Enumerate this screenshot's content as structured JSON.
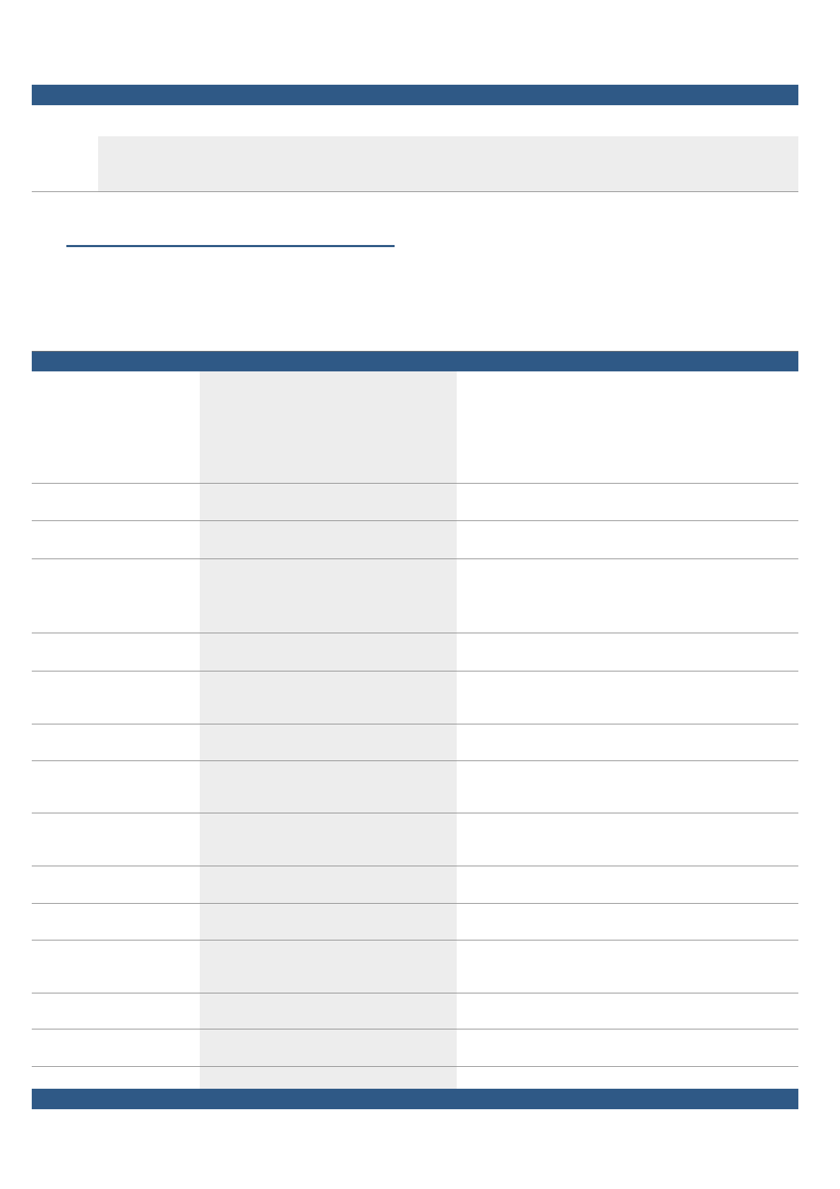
{
  "colors": {
    "header_bar": "#2f5986",
    "shaded_cell": "#ededed",
    "rule": "#8a8a8a"
  },
  "table": {
    "row_count": 14,
    "column_count": 3
  }
}
